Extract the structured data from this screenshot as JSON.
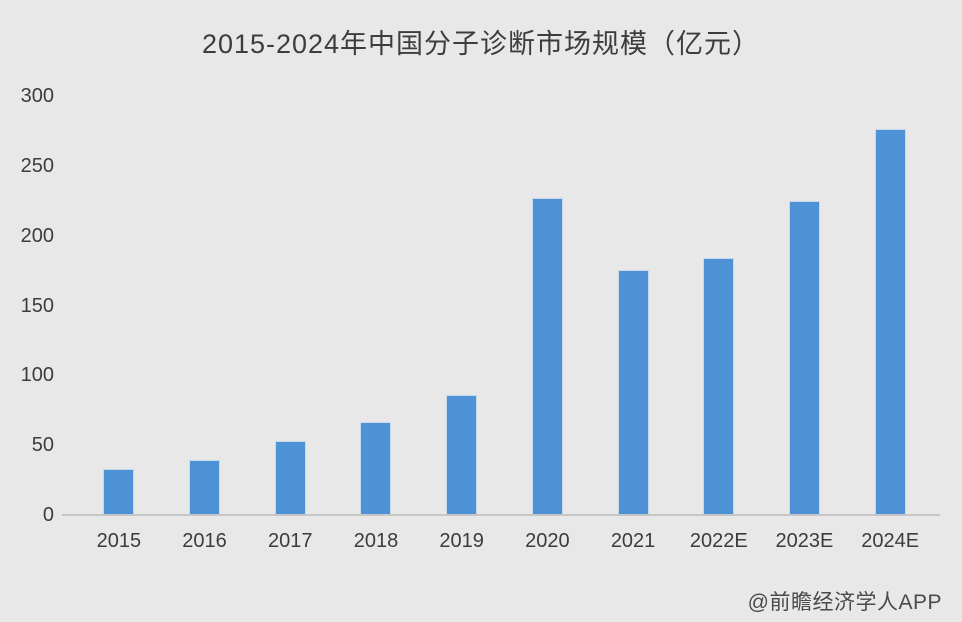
{
  "title": "2015-2024年中国分子诊断市场规模（亿元）",
  "watermark": "@前瞻经济学人APP",
  "colors": {
    "background": "#e9e8e8",
    "bar": "#4d92d4",
    "title_text": "#3d3d3d",
    "axis_text": "#3c3c3c",
    "axis_line": "#c6c6c6",
    "watermark_text": "#4a4a4a"
  },
  "chart_data": {
    "type": "bar",
    "title": "2015-2024年中国分子诊断市场规模（亿元）",
    "categories": [
      "2015",
      "2016",
      "2017",
      "2018",
      "2019",
      "2020",
      "2021",
      "2022E",
      "2023E",
      "2024E"
    ],
    "values": [
      32,
      39,
      52,
      66,
      85,
      226,
      175,
      183,
      224,
      276
    ],
    "xlabel": "",
    "ylabel": "",
    "unit": "亿元",
    "ylim": [
      0,
      300
    ],
    "yticks": [
      0,
      50,
      100,
      150,
      200,
      250,
      300
    ],
    "grid": false,
    "legend": false
  }
}
